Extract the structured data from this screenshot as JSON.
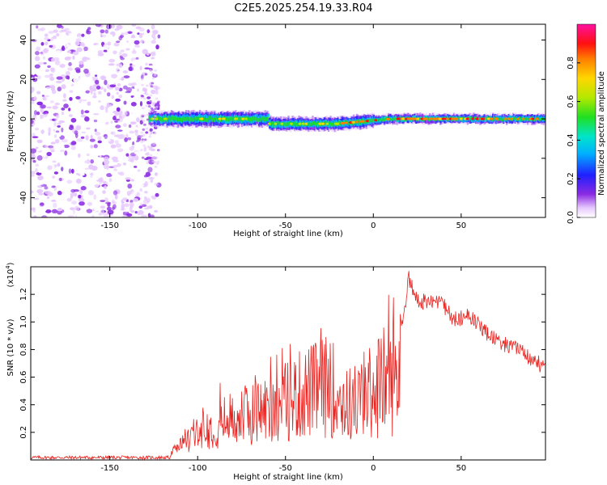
{
  "figure_title": "C2E5.2025.254.19.33.R04",
  "chart_data": [
    {
      "type": "heatmap",
      "title": "C2E5.2025.254.19.33.R04",
      "xlabel": "Height of straight line (km)",
      "ylabel": "Frequency (Hz)",
      "xlim": [
        -195,
        98
      ],
      "ylim": [
        -50,
        48
      ],
      "xticks": [
        -150,
        -100,
        -50,
        0,
        50
      ],
      "xtick_labels": [
        "-150",
        "-100",
        "-50",
        "0",
        "50"
      ],
      "yticks": [
        -40,
        -20,
        0,
        20,
        40
      ],
      "ytick_labels": [
        "-40",
        "-20",
        "0",
        "20",
        "40"
      ],
      "colorbar": {
        "label": "Normalized spectral amplitude",
        "range": [
          0,
          1
        ],
        "ticks": [
          0,
          0.2,
          0.4,
          0.6,
          0.8
        ],
        "tick_labels": [
          "0.0",
          "0.2",
          "0.4",
          "0.6",
          "0.8"
        ],
        "colormap": "rainbow (white-violet-blue-cyan-green-yellow-red-magenta)"
      },
      "description_regions": {
        "noise_region_x": [
          -195,
          -128
        ],
        "signal_band_x": [
          -128,
          98
        ],
        "signal_band_center_hz": 0
      }
    },
    {
      "type": "line",
      "title": "",
      "xlabel": "Height of straight line (km)",
      "ylabel": "SNR (10 * v/v)",
      "y_multiplier_label": "(x10",
      "y_multiplier_exp": "4",
      "y_multiplier_close": ")",
      "xlim": [
        -195,
        98
      ],
      "ylim": [
        0,
        1.4
      ],
      "xticks": [
        -150,
        -100,
        -50,
        0,
        50
      ],
      "xtick_labels": [
        "-150",
        "-100",
        "-50",
        "0",
        "50"
      ],
      "yticks": [
        0.2,
        0.4,
        0.6,
        0.8,
        1.0,
        1.2
      ],
      "ytick_labels": [
        "0.2",
        "0.4",
        "0.6",
        "0.8",
        "1.0",
        "1.2"
      ],
      "series": [
        {
          "name": "SNR",
          "color": "#e8231f",
          "envelope_points": [
            {
              "x": -195,
              "y": 0.02
            },
            {
              "x": -150,
              "y": 0.02
            },
            {
              "x": -120,
              "y": 0.03
            },
            {
              "x": -112,
              "y": 0.1
            },
            {
              "x": -105,
              "y": 0.25
            },
            {
              "x": -95,
              "y": 0.35
            },
            {
              "x": -85,
              "y": 0.45
            },
            {
              "x": -70,
              "y": 0.55
            },
            {
              "x": -55,
              "y": 0.65
            },
            {
              "x": -40,
              "y": 0.8
            },
            {
              "x": -25,
              "y": 0.9
            },
            {
              "x": -15,
              "y": 0.65
            },
            {
              "x": -5,
              "y": 0.75
            },
            {
              "x": 5,
              "y": 0.95
            },
            {
              "x": 12,
              "y": 1.0
            },
            {
              "x": 18,
              "y": 1.12
            },
            {
              "x": 20,
              "y": 1.38
            },
            {
              "x": 25,
              "y": 1.2
            },
            {
              "x": 35,
              "y": 1.22
            },
            {
              "x": 40,
              "y": 1.18
            },
            {
              "x": 45,
              "y": 1.08
            },
            {
              "x": 55,
              "y": 1.1
            },
            {
              "x": 65,
              "y": 0.98
            },
            {
              "x": 75,
              "y": 0.9
            },
            {
              "x": 85,
              "y": 0.84
            },
            {
              "x": 92,
              "y": 0.78
            },
            {
              "x": 98,
              "y": 0.72
            }
          ]
        }
      ]
    }
  ]
}
